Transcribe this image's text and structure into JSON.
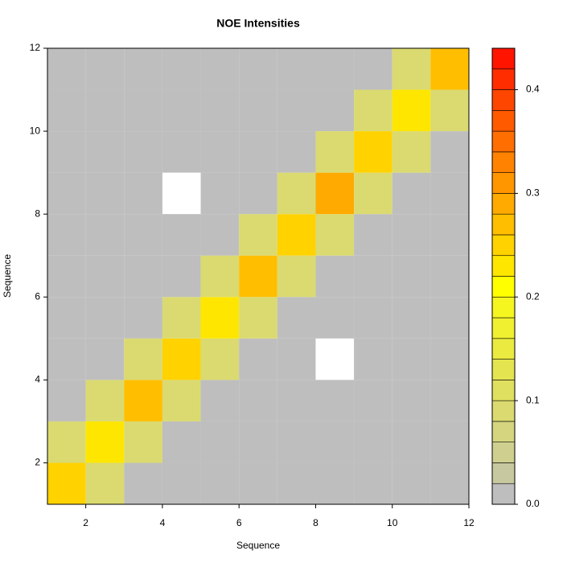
{
  "chart_data": {
    "type": "heatmap",
    "title": "NOE Intensities",
    "x_label": "Sequence",
    "y_label": "Sequence",
    "xbins": [
      1,
      2,
      3,
      4,
      5,
      6,
      7,
      8,
      9,
      10,
      11,
      12
    ],
    "ybins": [
      1,
      2,
      3,
      4,
      5,
      6,
      7,
      8,
      9,
      10,
      11,
      12
    ],
    "values": [
      [
        0.24,
        0.08,
        0.01,
        0.01,
        0.01,
        0.01,
        0.01,
        0.01,
        0.01,
        0.01,
        0.01
      ],
      [
        0.08,
        0.22,
        0.08,
        0.01,
        0.01,
        0.01,
        0.01,
        0.01,
        0.01,
        0.01,
        0.01
      ],
      [
        0.01,
        0.08,
        0.26,
        0.08,
        0.01,
        0.01,
        0.01,
        0.01,
        0.01,
        0.01,
        0.01
      ],
      [
        0.01,
        0.01,
        0.08,
        0.25,
        0.08,
        0.01,
        0.01,
        null,
        0.01,
        0.01,
        0.01
      ],
      [
        0.01,
        0.01,
        0.01,
        0.08,
        0.23,
        0.08,
        0.01,
        0.01,
        0.01,
        0.01,
        0.01
      ],
      [
        0.01,
        0.01,
        0.01,
        0.01,
        0.08,
        0.27,
        0.08,
        0.01,
        0.01,
        0.01,
        0.01
      ],
      [
        0.01,
        0.01,
        0.01,
        0.01,
        0.01,
        0.08,
        0.24,
        0.08,
        0.01,
        0.01,
        0.01
      ],
      [
        0.01,
        0.01,
        0.01,
        null,
        0.01,
        0.01,
        0.08,
        0.28,
        0.08,
        0.01,
        0.01
      ],
      [
        0.01,
        0.01,
        0.01,
        0.01,
        0.01,
        0.01,
        0.01,
        0.08,
        0.25,
        0.08,
        0.01
      ],
      [
        0.01,
        0.01,
        0.01,
        0.01,
        0.01,
        0.01,
        0.01,
        0.01,
        0.08,
        0.22,
        0.08
      ],
      [
        0.01,
        0.01,
        0.01,
        0.01,
        0.01,
        0.01,
        0.01,
        0.01,
        0.01,
        0.08,
        0.26
      ]
    ],
    "xlim": [
      1,
      12
    ],
    "ylim": [
      1,
      12
    ],
    "xticks": [
      2,
      4,
      6,
      8,
      10,
      12
    ],
    "yticks": [
      2,
      4,
      6,
      8,
      10,
      12
    ],
    "zlim": [
      0,
      0.44
    ],
    "zticks": [
      {
        "value": 0,
        "label": "0.0"
      },
      0.1,
      0.2,
      0.3,
      0.4
    ],
    "colors": [
      "#bebebe",
      "#c8c8a0",
      "#cfcf90",
      "#d5d580",
      "#dada70",
      "#dfdf60",
      "#e4e450",
      "#eaea40",
      "#f0f030",
      "#f5f520",
      "#ffff00",
      "#ffe600",
      "#ffd200",
      "#ffbe00",
      "#ffaa00",
      "#ff9600",
      "#ff8200",
      "#ff6e00",
      "#ff5a00",
      "#ff4600",
      "#ff2d00",
      "#ff1400"
    ]
  }
}
